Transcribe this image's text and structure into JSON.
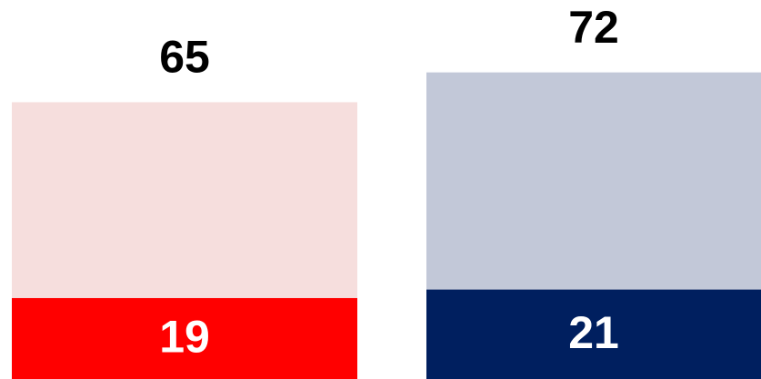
{
  "chart_data": {
    "type": "bar",
    "categories": [
      null,
      null
    ],
    "series": [
      {
        "color": [
          "#f6dedd",
          "#c2c8d8"
        ],
        "values": [
          65,
          72
        ]
      },
      {
        "color": [
          "#ff0000",
          "#001f5f"
        ],
        "values": [
          19,
          21
        ]
      }
    ],
    "ylim": [
      0,
      89
    ]
  }
}
